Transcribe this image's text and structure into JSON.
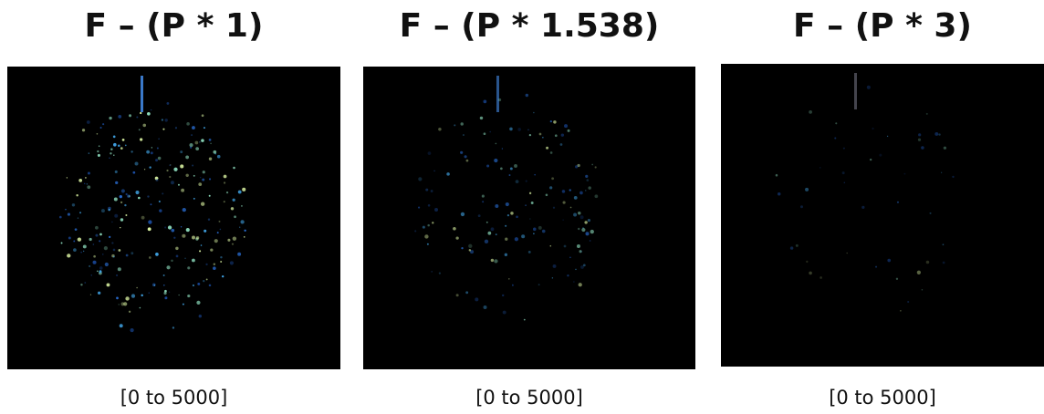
{
  "panels": [
    {
      "title": "F – (P * 1)",
      "caption": "[0 to 5000]"
    },
    {
      "title": "F – (P * 1.538)",
      "caption": "[0 to 5000]"
    },
    {
      "title": "F – (P * 3)",
      "caption": "[0 to 5000]"
    }
  ]
}
